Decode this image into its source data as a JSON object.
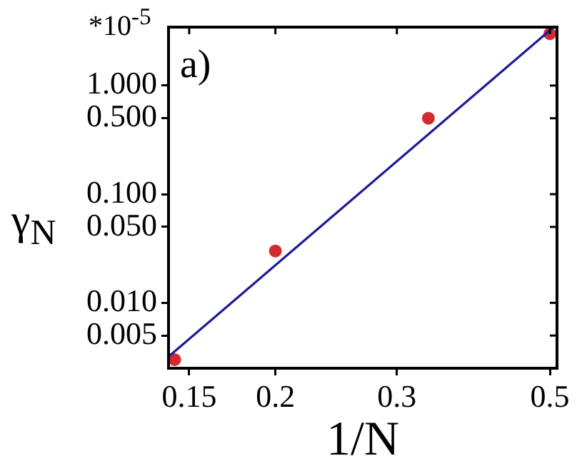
{
  "chart_data": {
    "type": "scatter",
    "xlabel": "1/N",
    "ylabel": "γ$_{N}$",
    "annotations": [
      "*10$^{-5}$",
      "a)"
    ],
    "series": [
      {
        "marker": "circle",
        "color": "#d42a2f",
        "x": [
          0.1429,
          0.2,
          0.3333,
          0.5
        ],
        "values": [
          0.003,
          0.03,
          0.5,
          3
        ]
      },
      {
        "type": "line",
        "marker": "none",
        "color": "#1c1c96",
        "x": [
          0.14,
          0.505
        ],
        "values": [
          0.0032,
          3.4
        ]
      }
    ],
    "log": "xy",
    "xlim": [
      0.14,
      0.512
    ],
    "xticks": [
      0.15,
      0.2,
      0.3,
      0.5
    ],
    "ylim": [
      0.0025,
      3.45
    ],
    "yticks": [
      {
        "value": 0.005,
        "label": "0.005"
      },
      {
        "value": 0.01,
        "label": "0.010"
      },
      {
        "value": 0.05,
        "label": "0.050"
      },
      {
        "value": 0.1,
        "label": "0.100"
      },
      {
        "value": 0.5,
        "label": "0.500"
      },
      {
        "value": 1,
        "label": "1.000"
      }
    ],
    "grid": false,
    "legend": false,
    "line_style": "solid"
  }
}
